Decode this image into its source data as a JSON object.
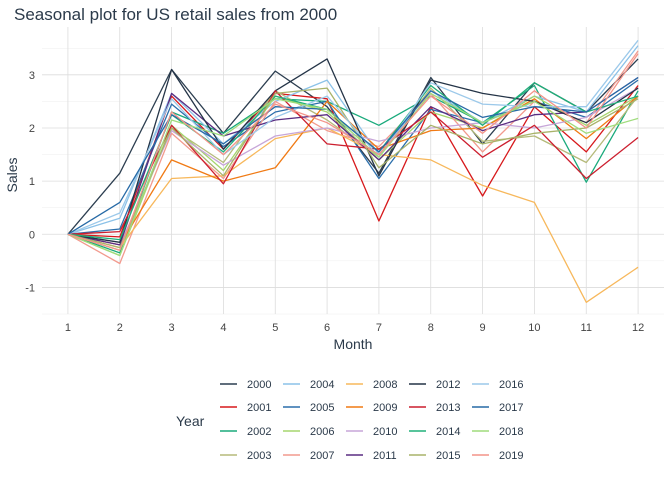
{
  "chart_data": {
    "type": "line",
    "title": "Seasonal plot for US retail sales from 2000",
    "xlabel": "Month",
    "ylabel": "Sales",
    "x": [
      1,
      2,
      3,
      4,
      5,
      6,
      7,
      8,
      9,
      10,
      11,
      12
    ],
    "xlim": [
      0.5,
      12.5
    ],
    "ylim": [
      -1.5,
      3.9
    ],
    "yticks": [
      -1,
      0,
      1,
      2,
      3
    ],
    "grid": true,
    "legend_title": "Year",
    "legend_position": "bottom",
    "series": [
      {
        "name": "2000",
        "color": "#2c3e50",
        "values": [
          0,
          1.15,
          3.1,
          1.9,
          3.07,
          2.4,
          1.15,
          2.95,
          1.7,
          2.85,
          2.3,
          3.3
        ]
      },
      {
        "name": "2001",
        "color": "#d7191c",
        "values": [
          0,
          -0.05,
          2.6,
          1.6,
          2.65,
          2.55,
          0.25,
          2.4,
          0.72,
          2.4,
          1.55,
          2.8
        ]
      },
      {
        "name": "2002",
        "color": "#1aaa7c",
        "values": [
          0,
          -0.35,
          2.3,
          1.9,
          2.55,
          2.5,
          2.05,
          2.6,
          2.1,
          2.8,
          0.98,
          2.7
        ]
      },
      {
        "name": "2003",
        "color": "#b5ba7a",
        "values": [
          0,
          -0.3,
          2.0,
          1.35,
          2.7,
          2.15,
          1.45,
          2.75,
          1.75,
          1.85,
          1.35,
          2.6
        ]
      },
      {
        "name": "2004",
        "color": "#8cc2e8",
        "values": [
          0,
          0.3,
          2.65,
          1.7,
          2.5,
          2.9,
          1.5,
          2.7,
          2.1,
          2.6,
          2.3,
          3.55
        ]
      },
      {
        "name": "2005",
        "color": "#2c6fab",
        "values": [
          0,
          0.1,
          2.45,
          1.65,
          2.3,
          2.5,
          1.05,
          2.35,
          2.1,
          2.5,
          2.2,
          2.9
        ]
      },
      {
        "name": "2006",
        "color": "#a6d56e",
        "values": [
          0,
          -0.4,
          2.05,
          1.2,
          2.6,
          2.3,
          1.4,
          2.3,
          2.0,
          2.6,
          2.05,
          2.6
        ]
      },
      {
        "name": "2007",
        "color": "#f29a8e",
        "values": [
          0,
          -0.55,
          1.9,
          1.05,
          2.5,
          1.95,
          1.65,
          2.65,
          1.55,
          2.5,
          2.1,
          3.45
        ]
      },
      {
        "name": "2008",
        "color": "#f7b85c",
        "values": [
          0,
          -0.25,
          1.05,
          1.1,
          1.8,
          2.0,
          1.5,
          1.4,
          0.92,
          0.6,
          -1.28,
          -0.62
        ]
      },
      {
        "name": "2009",
        "color": "#f07a14",
        "values": [
          0,
          -0.2,
          1.4,
          1.0,
          1.25,
          2.5,
          1.6,
          1.95,
          2.0,
          2.55,
          1.8,
          2.6
        ]
      },
      {
        "name": "2010",
        "color": "#c7a6d8",
        "values": [
          0,
          -0.2,
          1.95,
          1.3,
          1.85,
          2.0,
          1.75,
          2.0,
          2.1,
          2.0,
          2.2,
          2.75
        ]
      },
      {
        "name": "2011",
        "color": "#5a2d82",
        "values": [
          0,
          -0.2,
          2.65,
          1.85,
          2.15,
          2.25,
          1.4,
          2.4,
          1.95,
          2.25,
          2.3,
          2.95
        ]
      },
      {
        "name": "2012",
        "color": "#243447",
        "values": [
          0,
          -0.15,
          3.1,
          1.6,
          2.7,
          3.3,
          1.1,
          2.9,
          2.65,
          2.5,
          2.1,
          2.75
        ]
      },
      {
        "name": "2013",
        "color": "#cc1f2f",
        "values": [
          0,
          0.05,
          2.05,
          0.95,
          2.7,
          1.7,
          1.6,
          2.3,
          1.45,
          2.05,
          1.05,
          1.82
        ]
      },
      {
        "name": "2014",
        "color": "#20b07a",
        "values": [
          0,
          -0.1,
          2.25,
          1.55,
          2.6,
          2.35,
          1.55,
          2.8,
          2.05,
          2.85,
          2.3,
          2.6
        ]
      },
      {
        "name": "2015",
        "color": "#a8b36a",
        "values": [
          0,
          -0.25,
          2.0,
          1.1,
          2.65,
          2.75,
          1.25,
          2.05,
          1.7,
          1.9,
          2.0,
          2.55
        ]
      },
      {
        "name": "2016",
        "color": "#9cc9ea",
        "values": [
          0,
          0.4,
          2.55,
          1.5,
          2.2,
          2.6,
          1.45,
          2.85,
          2.45,
          2.4,
          2.4,
          3.65
        ]
      },
      {
        "name": "2017",
        "color": "#276aa6",
        "values": [
          0,
          0.6,
          2.25,
          1.7,
          2.4,
          2.35,
          1.55,
          2.7,
          2.2,
          2.4,
          2.3,
          2.95
        ]
      },
      {
        "name": "2018",
        "color": "#9fdc7c",
        "values": [
          0,
          -0.4,
          2.15,
          1.85,
          2.55,
          2.35,
          1.45,
          2.65,
          2.1,
          2.5,
          1.9,
          2.18
        ]
      },
      {
        "name": "2019",
        "color": "#f49489",
        "values": [
          0,
          -0.3,
          2.3,
          1.5,
          2.45,
          2.1,
          1.5,
          2.6,
          1.9,
          2.7,
          2.0,
          3.4
        ]
      }
    ]
  }
}
